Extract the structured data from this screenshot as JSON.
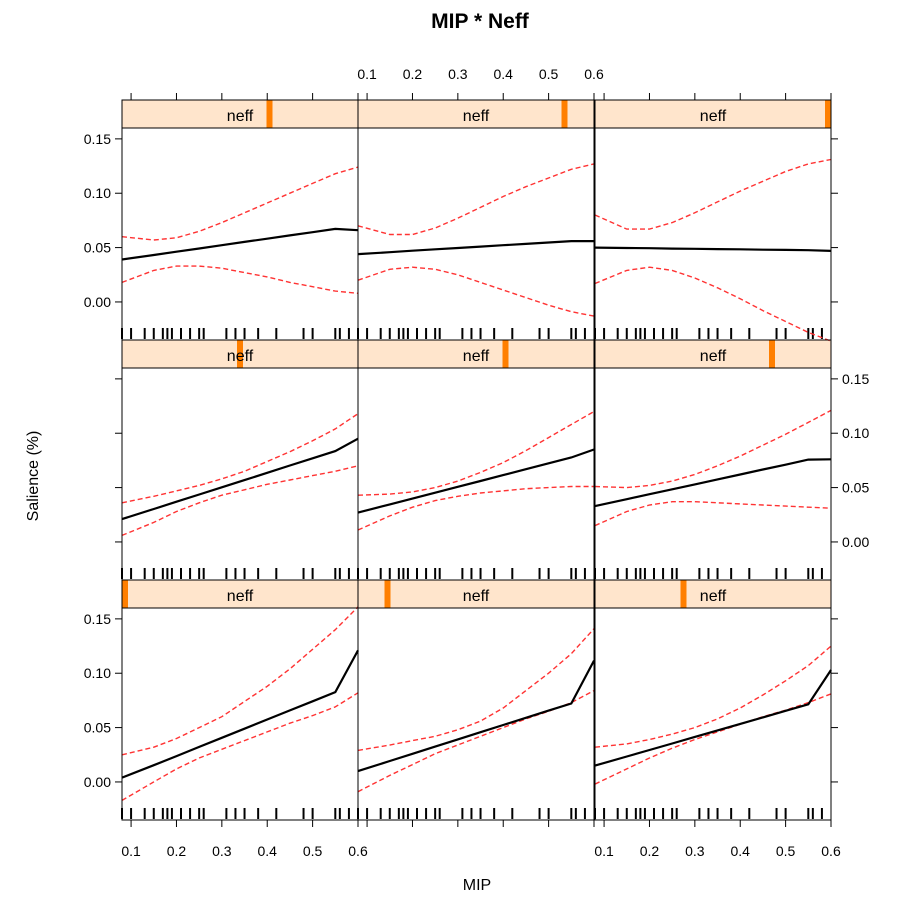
{
  "chart_data": {
    "type": "line",
    "title": "MIP * Neff",
    "xlabel": "MIP",
    "ylabel": "Salience (%)",
    "xlim": [
      0.08,
      0.6
    ],
    "ylim": [
      -0.035,
      0.16
    ],
    "xticks": [
      "0.1",
      "0.2",
      "0.3",
      "0.4",
      "0.5",
      "0.6"
    ],
    "yticks": [
      "0.00",
      "0.05",
      "0.10",
      "0.15"
    ],
    "grid": false,
    "rug_x": [
      0.08,
      0.1,
      0.13,
      0.15,
      0.17,
      0.18,
      0.19,
      0.21,
      0.23,
      0.25,
      0.26,
      0.31,
      0.33,
      0.35,
      0.38,
      0.42,
      0.48,
      0.5,
      0.55,
      0.56,
      0.58
    ],
    "x": [
      0.08,
      0.15,
      0.2,
      0.25,
      0.3,
      0.35,
      0.4,
      0.45,
      0.5,
      0.55,
      0.6
    ],
    "panels": [
      {
        "strip": "neff",
        "neff_level": 0.0,
        "fit": [
          0.004,
          0.0154,
          0.0238,
          0.0322,
          0.0406,
          0.049,
          0.0574,
          0.0658,
          0.0742,
          0.0826,
          0.121
        ],
        "lower": [
          -0.017,
          0.0,
          0.012,
          0.022,
          0.03,
          0.038,
          0.046,
          0.054,
          0.061,
          0.069,
          0.082
        ],
        "upper": [
          0.025,
          0.032,
          0.04,
          0.05,
          0.06,
          0.074,
          0.088,
          0.104,
          0.122,
          0.14,
          0.161
        ]
      },
      {
        "strip": "neff",
        "neff_level": 0.125,
        "fit": [
          0.01,
          0.0193,
          0.0259,
          0.0325,
          0.0391,
          0.0458,
          0.0524,
          0.059,
          0.0656,
          0.0722,
          0.1116
        ],
        "lower": [
          -0.009,
          0.006,
          0.016,
          0.026,
          0.034,
          0.042,
          0.05,
          0.058,
          0.065,
          0.073,
          0.084
        ],
        "upper": [
          0.029,
          0.034,
          0.038,
          0.042,
          0.048,
          0.056,
          0.068,
          0.084,
          0.1,
          0.118,
          0.141
        ]
      },
      {
        "strip": "neff",
        "neff_level": 0.375,
        "fit": [
          0.015,
          0.0234,
          0.0294,
          0.0354,
          0.0414,
          0.0474,
          0.0534,
          0.0594,
          0.0654,
          0.0714,
          0.103
        ],
        "lower": [
          -0.002,
          0.012,
          0.022,
          0.031,
          0.039,
          0.046,
          0.053,
          0.06,
          0.066,
          0.073,
          0.081
        ],
        "upper": [
          0.032,
          0.035,
          0.039,
          0.044,
          0.05,
          0.058,
          0.068,
          0.08,
          0.093,
          0.107,
          0.125
        ]
      },
      {
        "strip": "neff",
        "neff_level": 0.5,
        "fit": [
          0.021,
          0.0303,
          0.037,
          0.0436,
          0.0503,
          0.0569,
          0.0636,
          0.0703,
          0.0769,
          0.0836,
          0.095
        ],
        "lower": [
          0.006,
          0.018,
          0.028,
          0.036,
          0.043,
          0.048,
          0.053,
          0.057,
          0.061,
          0.065,
          0.07
        ],
        "upper": [
          0.036,
          0.042,
          0.047,
          0.052,
          0.058,
          0.065,
          0.074,
          0.083,
          0.093,
          0.104,
          0.118
        ]
      },
      {
        "strip": "neff",
        "neff_level": 0.625,
        "fit": [
          0.027,
          0.0345,
          0.0399,
          0.0453,
          0.0507,
          0.0561,
          0.0615,
          0.0669,
          0.0723,
          0.0777,
          0.085
        ],
        "lower": [
          0.011,
          0.024,
          0.032,
          0.038,
          0.042,
          0.045,
          0.047,
          0.049,
          0.05,
          0.051,
          0.051
        ],
        "upper": [
          0.043,
          0.044,
          0.046,
          0.05,
          0.056,
          0.064,
          0.073,
          0.084,
          0.096,
          0.108,
          0.12
        ]
      },
      {
        "strip": "neff",
        "neff_level": 0.75,
        "fit": [
          0.033,
          0.0393,
          0.0439,
          0.0484,
          0.0529,
          0.0575,
          0.062,
          0.0666,
          0.0711,
          0.0757,
          0.076
        ],
        "lower": [
          0.015,
          0.028,
          0.034,
          0.037,
          0.037,
          0.036,
          0.035,
          0.034,
          0.033,
          0.032,
          0.031
        ],
        "upper": [
          0.051,
          0.05,
          0.052,
          0.056,
          0.062,
          0.07,
          0.079,
          0.089,
          0.099,
          0.11,
          0.121
        ]
      },
      {
        "strip": "neff",
        "neff_level": 0.625,
        "fit": [
          0.039,
          0.0432,
          0.0462,
          0.0492,
          0.0522,
          0.0552,
          0.0582,
          0.0612,
          0.0642,
          0.0672,
          0.066
        ],
        "lower": [
          0.018,
          0.029,
          0.033,
          0.033,
          0.031,
          0.027,
          0.023,
          0.018,
          0.014,
          0.01,
          0.008
        ],
        "upper": [
          0.06,
          0.057,
          0.059,
          0.065,
          0.073,
          0.082,
          0.091,
          0.1,
          0.109,
          0.118,
          0.124
        ]
      },
      {
        "strip": "neff",
        "neff_level": 0.875,
        "fit": [
          0.044,
          0.0458,
          0.0471,
          0.0484,
          0.0496,
          0.0509,
          0.0522,
          0.0534,
          0.0547,
          0.056,
          0.056
        ],
        "lower": [
          0.02,
          0.03,
          0.032,
          0.03,
          0.025,
          0.018,
          0.011,
          0.004,
          -0.003,
          -0.009,
          -0.013
        ],
        "upper": [
          0.07,
          0.062,
          0.062,
          0.068,
          0.077,
          0.087,
          0.097,
          0.106,
          0.114,
          0.122,
          0.127
        ]
      },
      {
        "strip": "neff",
        "neff_level": 1.0,
        "fit": [
          0.05,
          0.0496,
          0.0494,
          0.0491,
          0.0489,
          0.0486,
          0.0484,
          0.0481,
          0.0479,
          0.0476,
          0.047
        ],
        "lower": [
          0.017,
          0.029,
          0.032,
          0.029,
          0.022,
          0.013,
          0.003,
          -0.008,
          -0.018,
          -0.028,
          -0.036
        ],
        "upper": [
          0.08,
          0.067,
          0.067,
          0.073,
          0.082,
          0.092,
          0.102,
          0.111,
          0.12,
          0.127,
          0.131
        ]
      }
    ]
  }
}
